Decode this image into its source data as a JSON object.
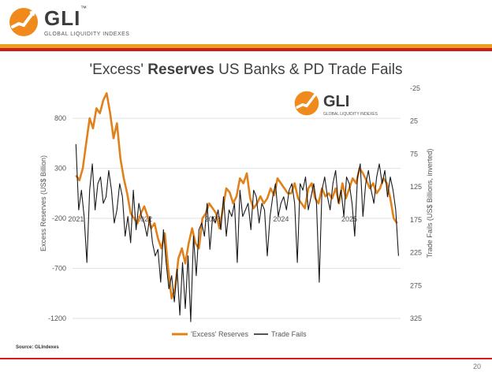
{
  "header": {
    "logo_text": "GLI",
    "logo_tm": "™",
    "logo_subtitle": "GLOBAL LIQUIDITY INDEXES"
  },
  "title_part1": "'Excess' ",
  "title_bold": "Reserves",
  "title_part2": " US Banks & PD Trade Fails",
  "inset_logo": {
    "text": "GLI",
    "subtitle": "GLOBAL LIQUIDITY INDEXES"
  },
  "source": "Source: GLIndexes",
  "page_number": "20",
  "colors": {
    "reserves": "#e0811c",
    "fails": "#1a1a1a",
    "orange_bar": "#e8a21a",
    "red_bar": "#d01b1b"
  },
  "chart_data": {
    "type": "line",
    "xlabel": "",
    "ylabel_left": "Excess Reserves (US$ Billion)",
    "ylabel_right": "Trade Fails (US$ Billions, inverted)",
    "left_ticks": [
      800,
      300,
      -200,
      -700,
      -1200
    ],
    "ylim_left": [
      -1200,
      1100
    ],
    "right_ticks": [
      -25,
      25,
      75,
      125,
      175,
      225,
      275,
      325
    ],
    "ylim_right_inverted": [
      -25,
      325
    ],
    "x_tick_labels": [
      "2021",
      "2022",
      "2023",
      "2024",
      "2025"
    ],
    "x_tick_values": [
      2021,
      2022,
      2023,
      2024,
      2025
    ],
    "xlim": [
      2020.95,
      2025.75
    ],
    "legend_position": "bottom-center",
    "series": [
      {
        "name": "'Excess' Reserves",
        "axis": "left",
        "x": [
          2021.0,
          2021.05,
          2021.1,
          2021.15,
          2021.2,
          2021.25,
          2021.3,
          2021.35,
          2021.4,
          2021.45,
          2021.5,
          2021.55,
          2021.6,
          2021.65,
          2021.7,
          2021.75,
          2021.8,
          2021.85,
          2021.9,
          2021.95,
          2022.0,
          2022.05,
          2022.1,
          2022.15,
          2022.2,
          2022.25,
          2022.3,
          2022.35,
          2022.4,
          2022.45,
          2022.5,
          2022.55,
          2022.6,
          2022.65,
          2022.7,
          2022.75,
          2022.8,
          2022.85,
          2022.9,
          2022.95,
          2023.0,
          2023.05,
          2023.1,
          2023.15,
          2023.2,
          2023.25,
          2023.3,
          2023.35,
          2023.4,
          2023.45,
          2023.5,
          2023.55,
          2023.6,
          2023.65,
          2023.7,
          2023.75,
          2023.8,
          2023.85,
          2023.9,
          2023.95,
          2024.0,
          2024.05,
          2024.1,
          2024.15,
          2024.2,
          2024.25,
          2024.3,
          2024.35,
          2024.4,
          2024.45,
          2024.5,
          2024.55,
          2024.6,
          2024.65,
          2024.7,
          2024.75,
          2024.8,
          2024.85,
          2024.9,
          2024.95,
          2025.0,
          2025.05,
          2025.1,
          2025.15,
          2025.2,
          2025.25,
          2025.3,
          2025.35,
          2025.4,
          2025.45,
          2025.5,
          2025.55,
          2025.6,
          2025.65,
          2025.7
        ],
        "values": [
          230,
          180,
          300,
          550,
          800,
          700,
          900,
          850,
          980,
          1050,
          850,
          600,
          750,
          400,
          200,
          50,
          -150,
          -200,
          -250,
          -150,
          -80,
          -180,
          -300,
          -250,
          -400,
          -500,
          -350,
          -700,
          -1000,
          -900,
          -600,
          -500,
          -650,
          -450,
          -300,
          -450,
          -500,
          -200,
          -150,
          -50,
          -100,
          -150,
          -300,
          -100,
          100,
          60,
          -50,
          20,
          200,
          150,
          250,
          0,
          -100,
          -50,
          20,
          -50,
          0,
          100,
          30,
          200,
          150,
          100,
          50,
          50,
          150,
          0,
          -50,
          -100,
          100,
          150,
          0,
          -50,
          100,
          20,
          50,
          0,
          100,
          -50,
          150,
          0,
          100,
          200,
          150,
          300,
          250,
          180,
          100,
          150,
          50,
          100,
          200,
          150,
          0,
          -200,
          -250
        ]
      },
      {
        "name": "Trade Fails",
        "axis": "right",
        "x": [
          2021.0,
          2021.04,
          2021.08,
          2021.12,
          2021.16,
          2021.2,
          2021.24,
          2021.28,
          2021.32,
          2021.36,
          2021.4,
          2021.44,
          2021.48,
          2021.52,
          2021.56,
          2021.6,
          2021.64,
          2021.68,
          2021.72,
          2021.76,
          2021.8,
          2021.84,
          2021.88,
          2021.92,
          2021.96,
          2022.0,
          2022.04,
          2022.08,
          2022.12,
          2022.16,
          2022.2,
          2022.24,
          2022.28,
          2022.32,
          2022.36,
          2022.4,
          2022.44,
          2022.48,
          2022.52,
          2022.56,
          2022.6,
          2022.64,
          2022.68,
          2022.72,
          2022.76,
          2022.8,
          2022.84,
          2022.88,
          2022.92,
          2022.96,
          2023.0,
          2023.04,
          2023.08,
          2023.12,
          2023.16,
          2023.2,
          2023.24,
          2023.28,
          2023.32,
          2023.36,
          2023.4,
          2023.44,
          2023.48,
          2023.52,
          2023.56,
          2023.6,
          2023.64,
          2023.68,
          2023.72,
          2023.76,
          2023.8,
          2023.84,
          2023.88,
          2023.92,
          2023.96,
          2024.0,
          2024.04,
          2024.08,
          2024.12,
          2024.16,
          2024.2,
          2024.24,
          2024.28,
          2024.32,
          2024.36,
          2024.4,
          2024.44,
          2024.48,
          2024.52,
          2024.56,
          2024.6,
          2024.64,
          2024.68,
          2024.72,
          2024.76,
          2024.8,
          2024.84,
          2024.88,
          2024.92,
          2024.96,
          2025.0,
          2025.04,
          2025.08,
          2025.12,
          2025.16,
          2025.2,
          2025.24,
          2025.28,
          2025.32,
          2025.36,
          2025.4,
          2025.44,
          2025.48,
          2025.52,
          2025.56,
          2025.6,
          2025.64,
          2025.68,
          2025.72
        ],
        "values": [
          60,
          160,
          130,
          170,
          240,
          130,
          90,
          160,
          120,
          110,
          150,
          140,
          100,
          130,
          180,
          160,
          120,
          140,
          200,
          170,
          210,
          130,
          190,
          150,
          170,
          180,
          200,
          170,
          210,
          230,
          220,
          270,
          190,
          240,
          280,
          260,
          300,
          250,
          320,
          240,
          310,
          230,
          330,
          200,
          260,
          190,
          180,
          200,
          150,
          220,
          170,
          180,
          160,
          190,
          140,
          200,
          160,
          170,
          150,
          240,
          130,
          170,
          160,
          150,
          190,
          130,
          140,
          180,
          150,
          160,
          230,
          170,
          140,
          120,
          170,
          150,
          140,
          160,
          130,
          120,
          150,
          240,
          120,
          130,
          110,
          160,
          140,
          120,
          150,
          270,
          130,
          110,
          140,
          160,
          120,
          100,
          150,
          130,
          170,
          110,
          120,
          150,
          200,
          110,
          90,
          170,
          120,
          100,
          130,
          150,
          110,
          90,
          120,
          100,
          140,
          110,
          130,
          160,
          230
        ]
      }
    ]
  }
}
